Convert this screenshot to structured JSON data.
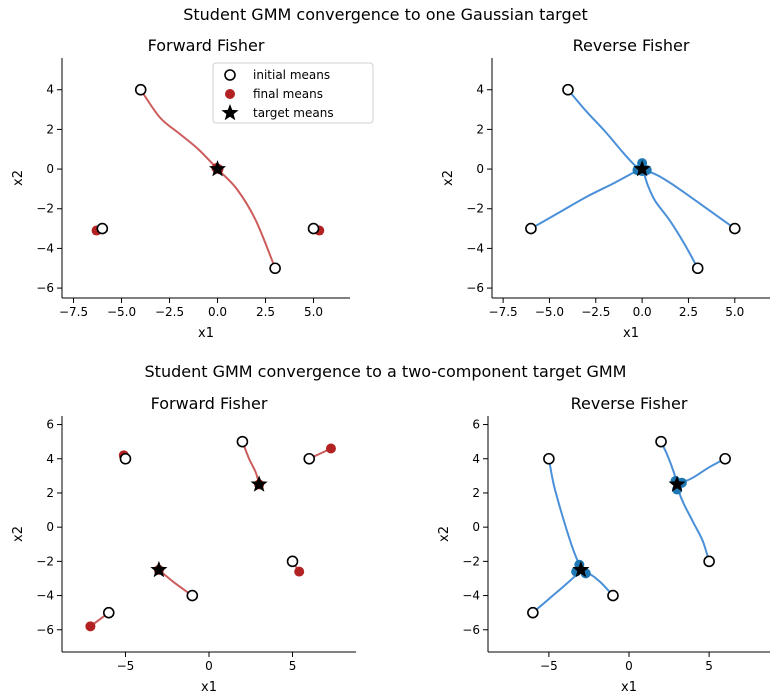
{
  "figure": {
    "suptitle_top": "Student GMM convergence to one Gaussian target",
    "suptitle_bottom": "Student GMM convergence to a two-component target GMM"
  },
  "legend": {
    "initial": "initial means",
    "final": "final means",
    "target": "target means"
  },
  "colors": {
    "forward": "#cd5c5c",
    "reverse": "#4a90d9",
    "final_marker": "#b22222",
    "final_marker_reverse": "#1f77b4"
  },
  "chart_data": [
    {
      "type": "line",
      "title": "Forward Fisher",
      "xlabel": "x1",
      "ylabel": "x2",
      "xlim": [
        -8.1,
        6.9
      ],
      "ylim": [
        -6.5,
        5.6
      ],
      "xticks": [
        -7.5,
        -5.0,
        -2.5,
        0.0,
        2.5,
        5.0
      ],
      "xtick_labels": [
        "−7.5",
        "−5.0",
        "−2.5",
        "0.0",
        "2.5",
        "5.0"
      ],
      "yticks": [
        -6,
        -4,
        -2,
        0,
        2,
        4
      ],
      "ytick_labels": [
        "−6",
        "−4",
        "−2",
        "0",
        "2",
        "4"
      ],
      "legend": true,
      "color": "forward",
      "final_color": "final_marker",
      "paths": [
        [
          [
            -4.0,
            4.0
          ],
          [
            -3.0,
            2.6
          ],
          [
            -2.0,
            1.8
          ],
          [
            -1.0,
            1.0
          ],
          [
            0.0,
            0.0
          ],
          [
            1.0,
            -1.0
          ],
          [
            2.0,
            -2.6
          ],
          [
            3.0,
            -5.0
          ]
        ],
        [
          [
            -6.0,
            -3.0
          ],
          [
            -6.3,
            -3.1
          ]
        ],
        [
          [
            5.0,
            -3.0
          ],
          [
            5.3,
            -3.1
          ]
        ]
      ],
      "initial": [
        [
          -4.0,
          4.0
        ],
        [
          3.0,
          -5.0
        ],
        [
          -6.0,
          -3.0
        ],
        [
          5.0,
          -3.0
        ]
      ],
      "final": [
        [
          0.05,
          0.0
        ],
        [
          -0.05,
          0.05
        ],
        [
          -6.3,
          -3.1
        ],
        [
          5.3,
          -3.1
        ]
      ],
      "targets": [
        [
          0.0,
          0.0
        ]
      ]
    },
    {
      "type": "line",
      "title": "Reverse Fisher",
      "xlabel": "x1",
      "ylabel": "x2",
      "xlim": [
        -8.1,
        6.9
      ],
      "ylim": [
        -6.5,
        5.6
      ],
      "xticks": [
        -7.5,
        -5.0,
        -2.5,
        0.0,
        2.5,
        5.0
      ],
      "xtick_labels": [
        "−7.5",
        "−5.0",
        "−2.5",
        "0.0",
        "2.5",
        "5.0"
      ],
      "yticks": [
        -6,
        -4,
        -2,
        0,
        2,
        4
      ],
      "ytick_labels": [
        "−6",
        "−4",
        "−2",
        "0",
        "2",
        "4"
      ],
      "legend": false,
      "color": "reverse",
      "final_color": "final_marker_reverse",
      "paths": [
        [
          [
            -4.0,
            4.0
          ],
          [
            -3.0,
            2.9
          ],
          [
            -2.0,
            1.9
          ],
          [
            -1.0,
            0.8
          ],
          [
            -0.4,
            0.2
          ],
          [
            0.0,
            0.0
          ]
        ],
        [
          [
            -6.0,
            -3.0
          ],
          [
            -4.5,
            -2.2
          ],
          [
            -3.0,
            -1.4
          ],
          [
            -1.5,
            -0.7
          ],
          [
            -0.5,
            -0.2
          ],
          [
            0.0,
            0.0
          ]
        ],
        [
          [
            5.0,
            -3.0
          ],
          [
            3.5,
            -2.0
          ],
          [
            2.0,
            -1.0
          ],
          [
            1.0,
            -0.4
          ],
          [
            0.3,
            -0.1
          ],
          [
            0.0,
            0.0
          ]
        ],
        [
          [
            3.0,
            -5.0
          ],
          [
            2.3,
            -3.8
          ],
          [
            1.5,
            -2.6
          ],
          [
            0.7,
            -1.6
          ],
          [
            0.3,
            -0.8
          ],
          [
            0.1,
            -0.2
          ],
          [
            0.0,
            0.0
          ]
        ]
      ],
      "initial": [
        [
          -4.0,
          4.0
        ],
        [
          -6.0,
          -3.0
        ],
        [
          5.0,
          -3.0
        ],
        [
          3.0,
          -5.0
        ]
      ],
      "final": [
        [
          0.0,
          0.3
        ],
        [
          -0.25,
          -0.05
        ],
        [
          0.25,
          -0.05
        ],
        [
          0.0,
          -0.1
        ]
      ],
      "targets": [
        [
          0.0,
          0.0
        ]
      ]
    },
    {
      "type": "line",
      "title": "Forward Fisher",
      "xlabel": "x1",
      "ylabel": "x2",
      "xlim": [
        -8.8,
        8.8
      ],
      "ylim": [
        -7.3,
        6.5
      ],
      "xticks": [
        -5,
        0,
        5
      ],
      "xtick_labels": [
        "−5",
        "0",
        "5"
      ],
      "yticks": [
        -6,
        -4,
        -2,
        0,
        2,
        4,
        6
      ],
      "ytick_labels": [
        "−6",
        "−4",
        "−2",
        "0",
        "2",
        "4",
        "6"
      ],
      "legend": false,
      "color": "forward",
      "final_color": "final_marker",
      "paths": [
        [
          [
            2.0,
            5.0
          ],
          [
            2.4,
            4.0
          ],
          [
            2.8,
            3.2
          ],
          [
            3.0,
            2.5
          ]
        ],
        [
          [
            6.0,
            4.0
          ],
          [
            7.3,
            4.6
          ]
        ],
        [
          [
            -1.0,
            -4.0
          ],
          [
            -2.0,
            -3.3
          ],
          [
            -3.0,
            -2.5
          ]
        ],
        [
          [
            -6.0,
            -5.0
          ],
          [
            -7.1,
            -5.8
          ]
        ],
        [
          [
            5.0,
            -2.0
          ],
          [
            5.4,
            -2.6
          ]
        ],
        [
          [
            -5.0,
            4.0
          ],
          [
            -5.1,
            4.2
          ]
        ]
      ],
      "initial": [
        [
          2.0,
          5.0
        ],
        [
          6.0,
          4.0
        ],
        [
          -5.0,
          4.0
        ],
        [
          5.0,
          -2.0
        ],
        [
          -1.0,
          -4.0
        ],
        [
          -6.0,
          -5.0
        ]
      ],
      "final": [
        [
          3.0,
          2.5
        ],
        [
          7.3,
          4.6
        ],
        [
          -5.1,
          4.2
        ],
        [
          5.4,
          -2.6
        ],
        [
          -3.0,
          -2.5
        ],
        [
          -7.1,
          -5.8
        ]
      ],
      "targets": [
        [
          3.0,
          2.5
        ],
        [
          -3.0,
          -2.5
        ]
      ]
    },
    {
      "type": "line",
      "title": "Reverse Fisher",
      "xlabel": "x1",
      "ylabel": "x2",
      "xlim": [
        -8.8,
        8.8
      ],
      "ylim": [
        -7.3,
        6.5
      ],
      "xticks": [
        -5,
        0,
        5
      ],
      "xtick_labels": [
        "−5",
        "0",
        "5"
      ],
      "yticks": [
        -6,
        -4,
        -2,
        0,
        2,
        4,
        6
      ],
      "ytick_labels": [
        "−6",
        "−4",
        "−2",
        "0",
        "2",
        "4",
        "6"
      ],
      "legend": false,
      "color": "reverse",
      "final_color": "final_marker_reverse",
      "paths": [
        [
          [
            -5.0,
            4.0
          ],
          [
            -4.7,
            2.5
          ],
          [
            -4.2,
            0.8
          ],
          [
            -3.6,
            -1.0
          ],
          [
            -3.2,
            -2.0
          ],
          [
            -3.0,
            -2.5
          ]
        ],
        [
          [
            -6.0,
            -5.0
          ],
          [
            -5.0,
            -4.2
          ],
          [
            -4.0,
            -3.4
          ],
          [
            -3.3,
            -2.8
          ],
          [
            -3.0,
            -2.5
          ]
        ],
        [
          [
            -1.0,
            -4.0
          ],
          [
            -1.8,
            -3.2
          ],
          [
            -2.5,
            -2.7
          ],
          [
            -3.0,
            -2.5
          ]
        ],
        [
          [
            2.0,
            5.0
          ],
          [
            2.4,
            4.2
          ],
          [
            2.8,
            3.2
          ],
          [
            3.0,
            2.5
          ]
        ],
        [
          [
            6.0,
            4.0
          ],
          [
            5.0,
            3.5
          ],
          [
            4.0,
            2.9
          ],
          [
            3.3,
            2.6
          ],
          [
            3.0,
            2.5
          ]
        ],
        [
          [
            5.0,
            -2.0
          ],
          [
            4.6,
            -0.8
          ],
          [
            4.0,
            0.3
          ],
          [
            3.4,
            1.4
          ],
          [
            3.1,
            2.1
          ],
          [
            3.0,
            2.5
          ]
        ]
      ],
      "initial": [
        [
          -5.0,
          4.0
        ],
        [
          -6.0,
          -5.0
        ],
        [
          -1.0,
          -4.0
        ],
        [
          2.0,
          5.0
        ],
        [
          6.0,
          4.0
        ],
        [
          5.0,
          -2.0
        ]
      ],
      "final": [
        [
          -3.1,
          -2.2
        ],
        [
          -3.3,
          -2.6
        ],
        [
          -2.7,
          -2.7
        ],
        [
          2.9,
          2.7
        ],
        [
          3.3,
          2.6
        ],
        [
          3.0,
          2.2
        ]
      ],
      "targets": [
        [
          3.0,
          2.5
        ],
        [
          -3.0,
          -2.5
        ]
      ]
    }
  ]
}
